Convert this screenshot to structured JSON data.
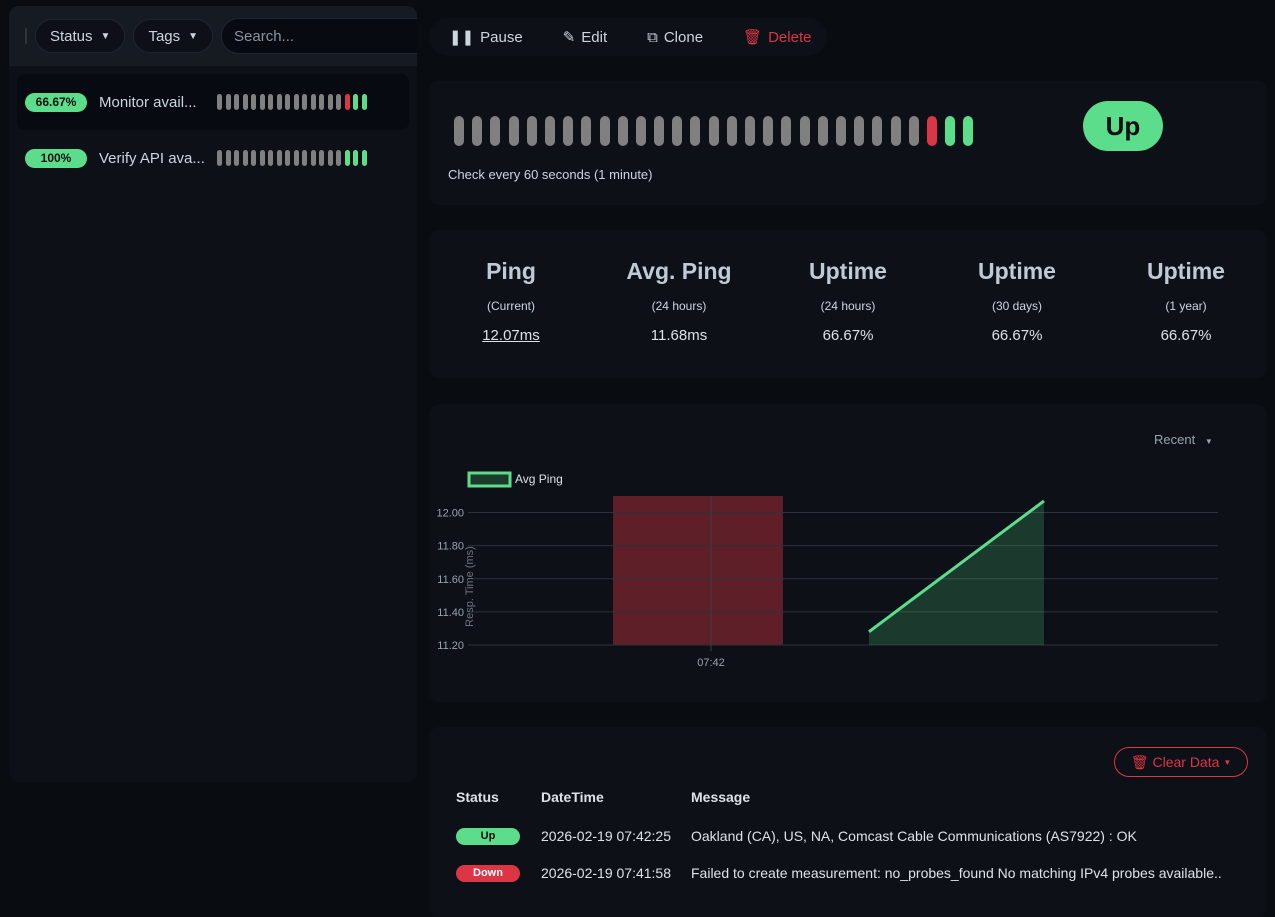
{
  "sidebar": {
    "filters": {
      "status": "Status",
      "tags": "Tags",
      "search_placeholder": "Search..."
    },
    "monitors": [
      {
        "uptime": "66.67%",
        "name": "Monitor avail...",
        "beats": [
          "empty",
          "empty",
          "empty",
          "empty",
          "empty",
          "empty",
          "empty",
          "empty",
          "empty",
          "empty",
          "empty",
          "empty",
          "empty",
          "empty",
          "empty",
          "down",
          "up",
          "up"
        ],
        "selected": true
      },
      {
        "uptime": "100%",
        "name": "Verify API ava...",
        "beats": [
          "empty",
          "empty",
          "empty",
          "empty",
          "empty",
          "empty",
          "empty",
          "empty",
          "empty",
          "empty",
          "empty",
          "empty",
          "empty",
          "empty",
          "empty",
          "up",
          "up",
          "up"
        ],
        "selected": false
      }
    ]
  },
  "toolbar": {
    "pause": "Pause",
    "edit": "Edit",
    "clone": "Clone",
    "delete": "Delete"
  },
  "heartbeat": {
    "beats": [
      "empty",
      "empty",
      "empty",
      "empty",
      "empty",
      "empty",
      "empty",
      "empty",
      "empty",
      "empty",
      "empty",
      "empty",
      "empty",
      "empty",
      "empty",
      "empty",
      "empty",
      "empty",
      "empty",
      "empty",
      "empty",
      "empty",
      "empty",
      "empty",
      "empty",
      "empty",
      "down",
      "up",
      "up"
    ],
    "interval_text": "Check every 60 seconds (1 minute)",
    "status": "Up"
  },
  "stats": [
    {
      "title": "Ping",
      "sub": "(Current)",
      "value": "12.07ms"
    },
    {
      "title": "Avg. Ping",
      "sub": "(24 hours)",
      "value": "11.68ms"
    },
    {
      "title": "Uptime",
      "sub": "(24 hours)",
      "value": "66.67%"
    },
    {
      "title": "Uptime",
      "sub": "(30 days)",
      "value": "66.67%"
    },
    {
      "title": "Uptime",
      "sub": "(1 year)",
      "value": "66.67%"
    }
  ],
  "chart": {
    "period": "Recent"
  },
  "chart_data": {
    "type": "line",
    "legend": [
      "Avg Ping"
    ],
    "ylabel": "Resp. Time (ms)",
    "xlabel": "",
    "x_ticks": [
      "07:42"
    ],
    "y_ticks": [
      "11.20",
      "11.40",
      "11.60",
      "11.80",
      "12.00"
    ],
    "ylim": [
      11.2,
      12.1
    ],
    "grid": true,
    "legend_position": "top-left",
    "down_period": {
      "label": "down",
      "color": "#dc3545"
    },
    "series": [
      {
        "name": "Avg Ping",
        "color": "#5cdd8b",
        "points": [
          11.28,
          12.07
        ]
      }
    ]
  },
  "events": {
    "clear_label": "Clear Data",
    "headers": [
      "Status",
      "DateTime",
      "Message"
    ],
    "rows": [
      {
        "status": "Up",
        "datetime": "2026-02-19 07:42:25",
        "message": "Oakland (CA), US, NA, Comcast Cable Communications (AS7922) : OK"
      },
      {
        "status": "Down",
        "datetime": "2026-02-19 07:41:58",
        "message": "Failed to create measurement: no_probes_found No matching IPv4 probes available.."
      }
    ]
  }
}
